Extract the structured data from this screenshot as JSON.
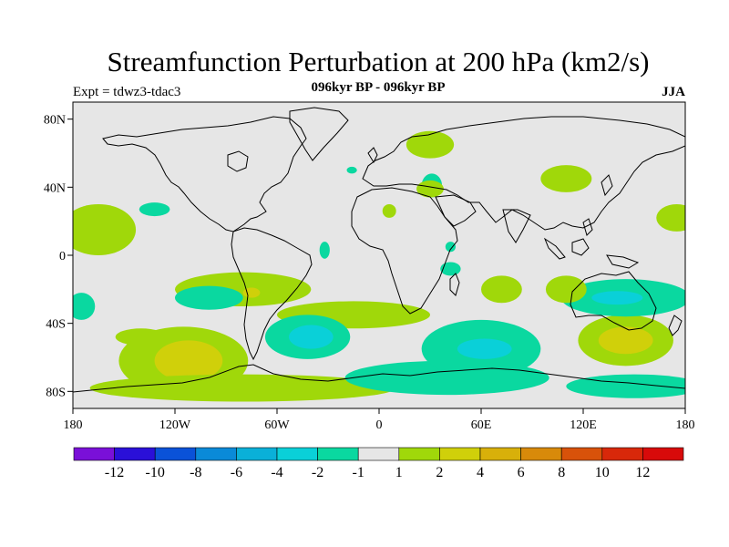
{
  "title": "Streamfunction Perturbation at 200 hPa (km2/s)",
  "subtitle": "096kyr BP - 096kyr BP",
  "left_label": "Expt = tdwz3-tdac3",
  "right_label": "JJA",
  "x_ticks": [
    {
      "lon": -180,
      "label": "180"
    },
    {
      "lon": -120,
      "label": "120W"
    },
    {
      "lon": -60,
      "label": "60W"
    },
    {
      "lon": 0,
      "label": "0"
    },
    {
      "lon": 60,
      "label": "60E"
    },
    {
      "lon": 120,
      "label": "120E"
    },
    {
      "lon": 180,
      "label": "180"
    }
  ],
  "y_ticks": [
    {
      "lat": 80,
      "label": "80N"
    },
    {
      "lat": 40,
      "label": "40N"
    },
    {
      "lat": 0,
      "label": "0"
    },
    {
      "lat": -40,
      "label": "40S"
    },
    {
      "lat": -80,
      "label": "80S"
    }
  ],
  "map_extent": {
    "lon": [
      -180,
      180
    ],
    "lat": [
      -90,
      90
    ]
  },
  "background_color": "#e6e6e6",
  "colorbar": {
    "colors": [
      "#7a10d8",
      "#2a10d8",
      "#0a52d8",
      "#0a8ad8",
      "#0ab0d8",
      "#0ad0d8",
      "#0ad8a0",
      "#e6e6e6",
      "#a0d80a",
      "#d0d00a",
      "#d8b00a",
      "#d88a0a",
      "#d8520a",
      "#d8280a",
      "#d80a0a"
    ],
    "labels": [
      "-12",
      "-10",
      "-8",
      "-6",
      "-4",
      "-2",
      "-1",
      "1",
      "2",
      "4",
      "6",
      "8",
      "10",
      "12"
    ]
  },
  "regions": [
    {
      "level": "2",
      "color": "#a0d80a",
      "lon": -165,
      "lat": 15,
      "rlon": 22,
      "rlat": 15
    },
    {
      "level": "-1",
      "color": "#0ad8a0",
      "lon": -132,
      "lat": 27,
      "rlon": 9,
      "rlat": 4
    },
    {
      "level": "2",
      "color": "#a0d80a",
      "lon": -140,
      "lat": -48,
      "rlon": 15,
      "rlat": 5
    },
    {
      "level": "-1",
      "color": "#0ad8a0",
      "lon": -175,
      "lat": -30,
      "rlon": 8,
      "rlat": 8
    },
    {
      "level": "2",
      "color": "#a0d80a",
      "lon": -80,
      "lat": -20,
      "rlon": 40,
      "rlat": 10
    },
    {
      "level": "-1",
      "color": "#0ad8a0",
      "lon": -100,
      "lat": -25,
      "rlon": 20,
      "rlat": 7
    },
    {
      "level": "4",
      "color": "#d0d00a",
      "lon": -75,
      "lat": -22,
      "rlon": 5,
      "rlat": 3
    },
    {
      "level": "2",
      "color": "#a0d80a",
      "lon": -15,
      "lat": -35,
      "rlon": 45,
      "rlat": 8
    },
    {
      "level": "2",
      "color": "#a0d80a",
      "lon": -115,
      "lat": -62,
      "rlon": 38,
      "rlat": 20
    },
    {
      "level": "4",
      "color": "#d0d00a",
      "lon": -112,
      "lat": -62,
      "rlon": 20,
      "rlat": 12
    },
    {
      "level": "2",
      "color": "#a0d80a",
      "lon": -80,
      "lat": -78,
      "rlon": 90,
      "rlat": 8
    },
    {
      "level": "-1",
      "color": "#0ad8a0",
      "lon": -42,
      "lat": -48,
      "rlon": 25,
      "rlat": 13
    },
    {
      "level": "-2",
      "color": "#0ad0d8",
      "lon": -40,
      "lat": -48,
      "rlon": 13,
      "rlat": 7
    },
    {
      "level": "-1",
      "color": "#0ad8a0",
      "lon": 40,
      "lat": -72,
      "rlon": 60,
      "rlat": 10
    },
    {
      "level": "-1",
      "color": "#0ad8a0",
      "lon": 60,
      "lat": -55,
      "rlon": 35,
      "rlat": 17
    },
    {
      "level": "-2",
      "color": "#0ad0d8",
      "lon": 62,
      "lat": -55,
      "rlon": 16,
      "rlat": 6
    },
    {
      "level": "-1",
      "color": "#0ad8a0",
      "lon": 150,
      "lat": -77,
      "rlon": 40,
      "rlat": 7
    },
    {
      "level": "2",
      "color": "#a0d80a",
      "lon": 145,
      "lat": -50,
      "rlon": 28,
      "rlat": 15
    },
    {
      "level": "4",
      "color": "#d0d00a",
      "lon": 145,
      "lat": -50,
      "rlon": 16,
      "rlat": 8
    },
    {
      "level": "-1",
      "color": "#0ad8a0",
      "lon": 145,
      "lat": -25,
      "rlon": 38,
      "rlat": 11
    },
    {
      "level": "-2",
      "color": "#0ad0d8",
      "lon": 140,
      "lat": -25,
      "rlon": 15,
      "rlat": 4
    },
    {
      "level": "2",
      "color": "#a0d80a",
      "lon": 110,
      "lat": -20,
      "rlon": 12,
      "rlat": 8
    },
    {
      "level": "2",
      "color": "#a0d80a",
      "lon": 72,
      "lat": -20,
      "rlon": 12,
      "rlat": 8
    },
    {
      "level": "2",
      "color": "#a0d80a",
      "lon": 30,
      "lat": 65,
      "rlon": 14,
      "rlat": 8
    },
    {
      "level": "-1",
      "color": "#0ad8a0",
      "lon": 31,
      "lat": 41,
      "rlon": 6,
      "rlat": 7
    },
    {
      "level": "2",
      "color": "#a0d80a",
      "lon": 30,
      "lat": 39,
      "rlon": 8,
      "rlat": 5
    },
    {
      "level": "2",
      "color": "#a0d80a",
      "lon": 6,
      "lat": 26,
      "rlon": 4,
      "rlat": 4
    },
    {
      "level": "2",
      "color": "#a0d80a",
      "lon": 110,
      "lat": 45,
      "rlon": 15,
      "rlat": 8
    },
    {
      "level": "-1",
      "color": "#0ad8a0",
      "lon": -32,
      "lat": 3,
      "rlon": 3,
      "rlat": 5
    },
    {
      "level": "-1",
      "color": "#0ad8a0",
      "lon": 42,
      "lat": 5,
      "rlon": 3,
      "rlat": 3
    },
    {
      "level": "-1",
      "color": "#0ad8a0",
      "lon": 42,
      "lat": -8,
      "rlon": 6,
      "rlat": 4
    },
    {
      "level": "2",
      "color": "#a0d80a",
      "lon": 175,
      "lat": 22,
      "rlon": 12,
      "rlat": 8
    },
    {
      "level": "-1",
      "color": "#0ad8a0",
      "lon": -16,
      "lat": 50,
      "rlon": 3,
      "rlat": 2
    }
  ]
}
